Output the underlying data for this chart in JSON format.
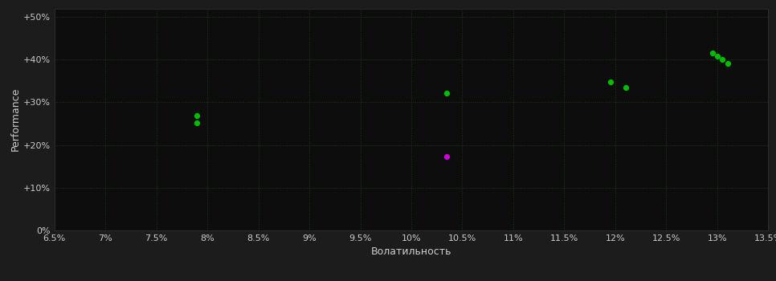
{
  "background_color": "#1c1c1c",
  "plot_bg_color": "#0d0d0d",
  "grid_color": "#1a3a1a",
  "text_color": "#cccccc",
  "xlabel": "Волатильность",
  "ylabel": "Performance",
  "xlim": [
    0.065,
    0.135
  ],
  "ylim": [
    0.0,
    0.52
  ],
  "xticks": [
    0.065,
    0.07,
    0.075,
    0.08,
    0.085,
    0.09,
    0.095,
    0.1,
    0.105,
    0.11,
    0.115,
    0.12,
    0.125,
    0.13,
    0.135
  ],
  "yticks": [
    0.0,
    0.1,
    0.2,
    0.3,
    0.4,
    0.5
  ],
  "ytick_labels": [
    "0%",
    "+10%",
    "+20%",
    "+30%",
    "+40%",
    "+50%"
  ],
  "xtick_labels": [
    "6.5%",
    "7%",
    "7.5%",
    "8%",
    "8.5%",
    "9%",
    "9.5%",
    "10%",
    "10.5%",
    "11%",
    "11.5%",
    "12%",
    "12.5%",
    "13%",
    "13.5%"
  ],
  "points_green": [
    [
      0.079,
      0.268
    ],
    [
      0.079,
      0.252
    ],
    [
      0.1035,
      0.321
    ],
    [
      0.1195,
      0.348
    ],
    [
      0.121,
      0.334
    ],
    [
      0.1295,
      0.415
    ],
    [
      0.13,
      0.408
    ],
    [
      0.1305,
      0.4
    ],
    [
      0.131,
      0.392
    ]
  ],
  "points_magenta": [
    [
      0.1035,
      0.173
    ]
  ],
  "green_color": "#00bb00",
  "magenta_color": "#cc00cc",
  "point_size": 18
}
